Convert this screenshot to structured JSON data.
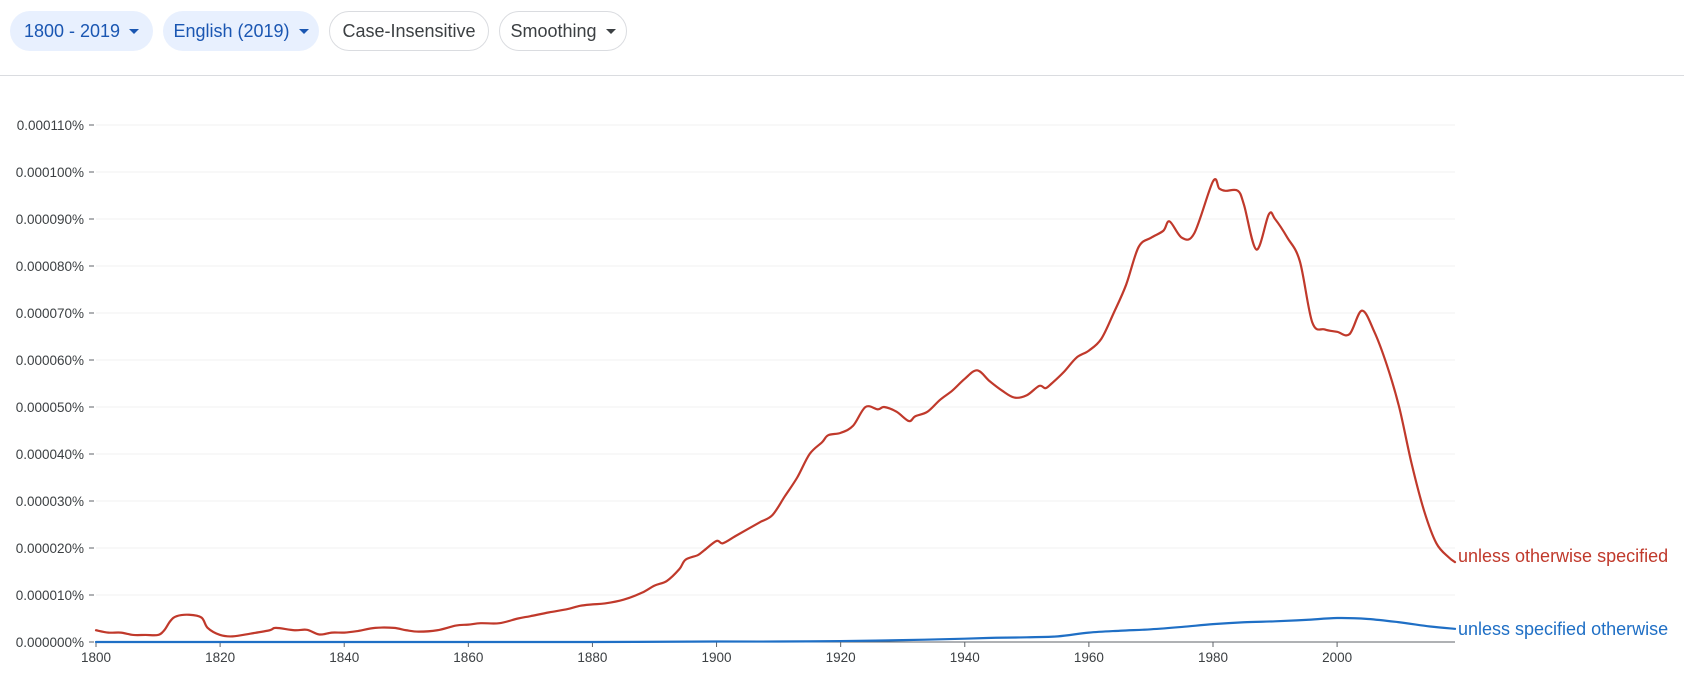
{
  "toolbar": {
    "range_label": "1800 - 2019",
    "corpus_label": "English (2019)",
    "case_label": "Case-Insensitive",
    "smoothing_label": "Smoothing"
  },
  "chart_data": {
    "type": "line",
    "title": "",
    "xlabel": "",
    "ylabel": "",
    "xlim": [
      1800,
      2019
    ],
    "ylim": [
      0,
      0.00011
    ],
    "grid": true,
    "y_ticks": [
      {
        "value": 0.0,
        "label": "0.000000%"
      },
      {
        "value": 1e-05,
        "label": "0.000010%"
      },
      {
        "value": 2e-05,
        "label": "0.000020%"
      },
      {
        "value": 3e-05,
        "label": "0.000030%"
      },
      {
        "value": 4e-05,
        "label": "0.000040%"
      },
      {
        "value": 5e-05,
        "label": "0.000050%"
      },
      {
        "value": 6e-05,
        "label": "0.000060%"
      },
      {
        "value": 7e-05,
        "label": "0.000070%"
      },
      {
        "value": 8e-05,
        "label": "0.000080%"
      },
      {
        "value": 9e-05,
        "label": "0.000090%"
      },
      {
        "value": 0.0001,
        "label": "0.000100%"
      },
      {
        "value": 0.00011,
        "label": "0.000110%"
      }
    ],
    "x_ticks": [
      {
        "value": 1800,
        "label": "1800"
      },
      {
        "value": 1820,
        "label": "1820"
      },
      {
        "value": 1840,
        "label": "1840"
      },
      {
        "value": 1860,
        "label": "1860"
      },
      {
        "value": 1880,
        "label": "1880"
      },
      {
        "value": 1900,
        "label": "1900"
      },
      {
        "value": 1920,
        "label": "1920"
      },
      {
        "value": 1940,
        "label": "1940"
      },
      {
        "value": 1960,
        "label": "1960"
      },
      {
        "value": 1980,
        "label": "1980"
      },
      {
        "value": 2000,
        "label": "2000"
      }
    ],
    "series": [
      {
        "name": "unless otherwise specified",
        "color": "#c0392b",
        "x": [
          1800,
          1802,
          1804,
          1806,
          1808,
          1810,
          1811,
          1812,
          1813,
          1815,
          1817,
          1818,
          1820,
          1822,
          1825,
          1828,
          1829,
          1832,
          1834,
          1836,
          1838,
          1840,
          1842,
          1845,
          1848,
          1850,
          1852,
          1855,
          1858,
          1860,
          1862,
          1865,
          1868,
          1870,
          1873,
          1876,
          1878,
          1880,
          1882,
          1885,
          1888,
          1890,
          1892,
          1894,
          1895,
          1897,
          1898,
          1900,
          1901,
          1903,
          1905,
          1907,
          1909,
          1911,
          1913,
          1915,
          1917,
          1918,
          1920,
          1922,
          1924,
          1926,
          1927,
          1929,
          1931,
          1932,
          1934,
          1936,
          1938,
          1940,
          1942,
          1944,
          1946,
          1948,
          1950,
          1952,
          1953,
          1954,
          1956,
          1958,
          1960,
          1962,
          1964,
          1966,
          1968,
          1970,
          1972,
          1973,
          1975,
          1977,
          1980,
          1981,
          1982,
          1984,
          1985,
          1987,
          1989,
          1990,
          1992,
          1994,
          1996,
          1998,
          2000,
          2002,
          2004,
          2006,
          2008,
          2010,
          2012,
          2014,
          2016,
          2018,
          2019
        ],
        "values": [
          2.5e-06,
          2e-06,
          2e-06,
          1.5e-06,
          1.5e-06,
          1.5e-06,
          2.5e-06,
          4.5e-06,
          5.5e-06,
          5.8e-06,
          5.2e-06,
          3e-06,
          1.5e-06,
          1.2e-06,
          1.8e-06,
          2.5e-06,
          3e-06,
          2.5e-06,
          2.6e-06,
          1.6e-06,
          2e-06,
          2e-06,
          2.3e-06,
          3e-06,
          3e-06,
          2.5e-06,
          2.2e-06,
          2.5e-06,
          3.5e-06,
          3.7e-06,
          4e-06,
          4e-06,
          5e-06,
          5.5e-06,
          6.3e-06,
          7e-06,
          7.7e-06,
          8e-06,
          8.2e-06,
          9e-06,
          1.05e-05,
          1.2e-05,
          1.3e-05,
          1.55e-05,
          1.75e-05,
          1.85e-05,
          1.95e-05,
          2.15e-05,
          2.1e-05,
          2.25e-05,
          2.4e-05,
          2.55e-05,
          2.7e-05,
          3.1e-05,
          3.5e-05,
          4e-05,
          4.25e-05,
          4.4e-05,
          4.45e-05,
          4.6e-05,
          5e-05,
          4.95e-05,
          5e-05,
          4.9e-05,
          4.7e-05,
          4.8e-05,
          4.9e-05,
          5.15e-05,
          5.35e-05,
          5.6e-05,
          5.78e-05,
          5.55e-05,
          5.35e-05,
          5.2e-05,
          5.25e-05,
          5.45e-05,
          5.4e-05,
          5.5e-05,
          5.75e-05,
          6.05e-05,
          6.2e-05,
          6.45e-05,
          7e-05,
          7.6e-05,
          8.4e-05,
          8.6e-05,
          8.75e-05,
          8.95e-05,
          8.6e-05,
          8.7e-05,
          9.8e-05,
          9.65e-05,
          9.6e-05,
          9.6e-05,
          9.3e-05,
          8.35e-05,
          9.1e-05,
          9e-05,
          8.6e-05,
          8.1e-05,
          6.8e-05,
          6.65e-05,
          6.6e-05,
          6.55e-05,
          7.05e-05,
          6.6e-05,
          5.9e-05,
          5e-05,
          3.8e-05,
          2.8e-05,
          2.1e-05,
          1.8e-05,
          1.7e-05
        ]
      },
      {
        "name": "unless specified otherwise",
        "color": "#1f6fc5",
        "x": [
          1800,
          1820,
          1840,
          1860,
          1880,
          1900,
          1910,
          1920,
          1930,
          1940,
          1945,
          1950,
          1955,
          1960,
          1965,
          1970,
          1975,
          1980,
          1985,
          1990,
          1995,
          2000,
          2005,
          2010,
          2015,
          2019
        ],
        "values": [
          0.0,
          0.0,
          0.0,
          0.0,
          0.0,
          1e-07,
          1e-07,
          2e-07,
          4e-07,
          7e-07,
          9e-07,
          1e-06,
          1.2e-06,
          2e-06,
          2.4e-06,
          2.7e-06,
          3.2e-06,
          3.8e-06,
          4.2e-06,
          4.4e-06,
          4.7e-06,
          5.1e-06,
          4.9e-06,
          4.2e-06,
          3.3e-06,
          2.8e-06
        ]
      }
    ]
  }
}
